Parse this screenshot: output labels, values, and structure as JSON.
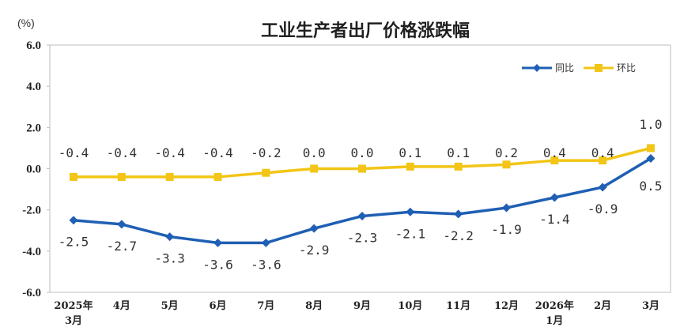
{
  "chart_data": {
    "type": "line",
    "title": "工业生产者出厂价格涨跌幅",
    "ylabel": "(%)",
    "ylim": [
      -6.0,
      6.0
    ],
    "yticks": [
      "6.0",
      "4.0",
      "2.0",
      "0.0",
      "-2.0",
      "-4.0",
      "-6.0"
    ],
    "ytick_values": [
      6,
      4,
      2,
      0,
      -2,
      -4,
      -6
    ],
    "categories": [
      [
        "2025年",
        "3月"
      ],
      [
        "4月"
      ],
      [
        "5月"
      ],
      [
        "6月"
      ],
      [
        "7月"
      ],
      [
        "8月"
      ],
      [
        "9月"
      ],
      [
        "10月"
      ],
      [
        "11月"
      ],
      [
        "12月"
      ],
      [
        "2026年",
        "1月"
      ],
      [
        "2月"
      ],
      [
        "3月"
      ]
    ],
    "grid": false,
    "legend_position": "top-right",
    "series": [
      {
        "name": "同比",
        "color": "#1f5fb4",
        "marker": "diamond",
        "values": [
          -2.5,
          -2.7,
          -3.3,
          -3.6,
          -3.6,
          -2.9,
          -2.3,
          -2.1,
          -2.2,
          -1.9,
          -1.4,
          -0.9,
          0.5
        ],
        "labels": [
          "-2.5",
          "-2.7",
          "-3.3",
          "-3.6",
          "-3.6",
          "-2.9",
          "-2.3",
          "-2.1",
          "-2.2",
          "-1.9",
          "-1.4",
          "-0.9",
          "0.5"
        ]
      },
      {
        "name": "环比",
        "color": "#f2c516",
        "marker": "square",
        "values": [
          -0.4,
          -0.4,
          -0.4,
          -0.4,
          -0.2,
          0.0,
          0.0,
          0.1,
          0.1,
          0.2,
          0.4,
          0.4,
          1.0
        ],
        "labels": [
          "-0.4",
          "-0.4",
          "-0.4",
          "-0.4",
          "-0.2",
          "0.0",
          "0.0",
          "0.1",
          "0.1",
          "0.2",
          "0.4",
          "0.4",
          "1.0"
        ]
      }
    ]
  }
}
